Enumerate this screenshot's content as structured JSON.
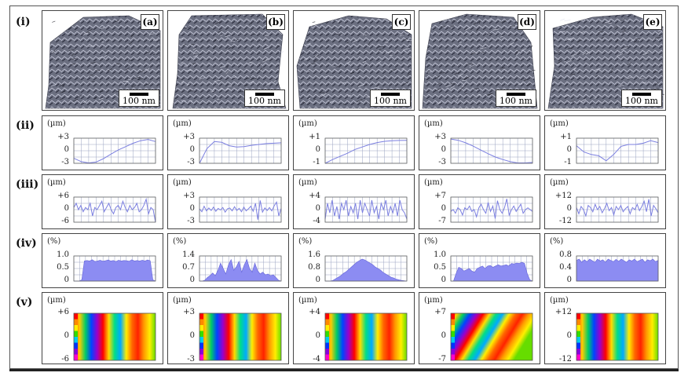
{
  "row_labels": [
    "(i)",
    "(ii)",
    "(iii)",
    "(iv)",
    "(v)"
  ],
  "panel_tags": [
    "(a)",
    "(b)",
    "(c)",
    "(d)",
    "(e)"
  ],
  "scale_bar_text": "100 nm",
  "unit_um": "(µm)",
  "unit_pct": "(%)",
  "surface_color": "#6b6f80",
  "plot_line_color": "#7b7fe0",
  "hist_fill_color": "#8c8cf2",
  "chart_data": [
    {
      "type": "line",
      "panel": "(a)",
      "row": "(ii)",
      "ylabel": "(µm)",
      "yticks": [
        "+3",
        "0",
        "-3"
      ],
      "ylim": [
        -3,
        3
      ],
      "values": [
        -1.8,
        -2.6,
        -2.9,
        -2.7,
        -1.9,
        -0.8,
        0.2,
        1.0,
        1.8,
        2.4,
        2.7,
        2.2
      ]
    },
    {
      "type": "line",
      "panel": "(b)",
      "row": "(ii)",
      "ylabel": "(µm)",
      "yticks": [
        "+3",
        "0",
        "-3"
      ],
      "ylim": [
        -3,
        3
      ],
      "values": [
        -3,
        0.5,
        2.2,
        2.0,
        1.2,
        0.9,
        1.0,
        1.3,
        1.5,
        1.7,
        1.8,
        1.9
      ]
    },
    {
      "type": "line",
      "panel": "(c)",
      "row": "(ii)",
      "ylabel": "(µm)",
      "yticks": [
        "+1",
        "0",
        "-1"
      ],
      "ylim": [
        -1,
        1
      ],
      "values": [
        -1,
        -0.7,
        -0.45,
        -0.2,
        0.1,
        0.3,
        0.5,
        0.65,
        0.75,
        0.8,
        0.82,
        0.83
      ]
    },
    {
      "type": "line",
      "panel": "(d)",
      "row": "(ii)",
      "ylabel": "(µm)",
      "yticks": [
        "+3",
        "0",
        "-3"
      ],
      "ylim": [
        -3,
        3
      ],
      "values": [
        2.8,
        2.5,
        1.9,
        1.1,
        0.2,
        -0.7,
        -1.5,
        -2.1,
        -2.6,
        -2.9,
        -2.9,
        -2.8
      ]
    },
    {
      "type": "line",
      "panel": "(e)",
      "row": "(ii)",
      "ylabel": "(µm)",
      "yticks": [
        "+1",
        "0",
        "-1"
      ],
      "ylim": [
        -1,
        1
      ],
      "values": [
        0.4,
        -0.1,
        -0.3,
        -0.4,
        -0.8,
        -0.3,
        0.35,
        0.5,
        0.5,
        0.6,
        0.8,
        0.65
      ]
    },
    {
      "type": "line",
      "panel": "(a)",
      "row": "(iii)",
      "ylabel": "(µm)",
      "yticks": [
        "+6",
        "0",
        "-6"
      ],
      "ylim": [
        -6,
        6
      ],
      "values": [
        1,
        3,
        0,
        2,
        -1,
        1,
        0,
        3,
        -3,
        1,
        0,
        2,
        4,
        -1,
        1,
        3,
        0,
        -2,
        1,
        2,
        0,
        4,
        1,
        -1,
        2,
        0,
        1,
        3,
        -1,
        0,
        2,
        5,
        -2,
        1,
        0,
        -6
      ]
    },
    {
      "type": "line",
      "panel": "(b)",
      "row": "(iii)",
      "ylabel": "(µm)",
      "yticks": [
        "+3",
        "0",
        "-3"
      ],
      "ylim": [
        -3,
        3
      ],
      "values": [
        0.2,
        -0.5,
        0.8,
        -0.3,
        0.4,
        -0.2,
        0.6,
        -0.4,
        0.3,
        -0.1,
        0.5,
        -0.6,
        0.2,
        0.4,
        -0.3,
        0.7,
        -0.2,
        0.3,
        -0.5,
        0.6,
        -0.3,
        0.2,
        0.8,
        -0.4,
        1.5,
        -2.4,
        2.2,
        -0.6,
        0.4,
        -0.2,
        0.5,
        -0.3,
        0.9,
        1.8,
        -1.5,
        0.3
      ]
    },
    {
      "type": "line",
      "panel": "(c)",
      "row": "(iii)",
      "ylabel": "(µm)",
      "yticks": [
        "+4",
        "0",
        "-4"
      ],
      "ylim": [
        -4,
        4
      ],
      "values": [
        -3,
        2,
        -1,
        3,
        -2,
        1,
        -3,
        2,
        0,
        3,
        -2,
        1,
        -1,
        2,
        -3,
        3,
        -1,
        2,
        0,
        -2,
        3,
        -1,
        1,
        -3,
        2,
        0,
        3,
        -2,
        1,
        -1,
        2,
        -2,
        3,
        0,
        -1,
        -3
      ]
    },
    {
      "type": "line",
      "panel": "(d)",
      "row": "(iii)",
      "ylabel": "(µm)",
      "yticks": [
        "+7",
        "0",
        "-7"
      ],
      "ylim": [
        -7,
        7
      ],
      "values": [
        -1,
        0,
        -2,
        1,
        0,
        -3,
        1,
        0,
        2,
        -1,
        0,
        -4,
        1,
        3,
        0,
        -2,
        4,
        -1,
        2,
        -5,
        5,
        0,
        -2,
        1,
        6,
        -3,
        0,
        2,
        -1,
        1,
        3,
        -2,
        0,
        1,
        0,
        -1
      ]
    },
    {
      "type": "line",
      "panel": "(e)",
      "row": "(iii)",
      "ylabel": "(µm)",
      "yticks": [
        "+12",
        "0",
        "-12"
      ],
      "ylim": [
        -12,
        12
      ],
      "values": [
        2,
        -4,
        3,
        0,
        -6,
        4,
        2,
        -2,
        5,
        0,
        3,
        -3,
        1,
        6,
        -1,
        2,
        -5,
        3,
        0,
        4,
        -2,
        1,
        3,
        -4,
        2,
        0,
        5,
        -1,
        3,
        8,
        -2,
        10,
        -6,
        4,
        1,
        -3
      ]
    },
    {
      "type": "area",
      "panel": "(a)",
      "row": "(iv)",
      "ylabel": "(%)",
      "yticks": [
        "1.0",
        "0.5",
        "0"
      ],
      "ylim": [
        0,
        1.0
      ],
      "values": [
        0,
        0,
        0,
        0.05,
        0.8,
        0.82,
        0.8,
        0.85,
        0.78,
        0.8,
        0.83,
        0.79,
        0.81,
        0.84,
        0.8,
        0.82,
        0.78,
        0.83,
        0.8,
        0.82,
        0.81,
        0.79,
        0.85,
        0.8,
        0.82,
        0.8,
        0.83,
        0.8,
        0.84,
        0.81,
        0.05,
        0
      ]
    },
    {
      "type": "area",
      "panel": "(b)",
      "row": "(iv)",
      "ylabel": "(%)",
      "yticks": [
        "1.4",
        "0.7",
        "0"
      ],
      "ylim": [
        0,
        1.4
      ],
      "values": [
        0,
        0,
        0.05,
        0.2,
        0.3,
        0.45,
        0.3,
        0.6,
        1.0,
        0.7,
        0.4,
        0.9,
        1.2,
        0.6,
        0.8,
        1.1,
        0.5,
        0.9,
        1.2,
        0.7,
        0.5,
        1.0,
        0.6,
        0.4,
        0.5,
        0.35,
        0.4,
        0.3,
        0.35,
        0.2,
        0.05,
        0
      ]
    },
    {
      "type": "area",
      "panel": "(c)",
      "row": "(iv)",
      "ylabel": "(%)",
      "yticks": [
        "1.6",
        "0.8",
        "0"
      ],
      "ylim": [
        0,
        1.6
      ],
      "values": [
        0,
        0,
        0,
        0.05,
        0.15,
        0.25,
        0.35,
        0.5,
        0.6,
        0.75,
        0.9,
        1.05,
        1.2,
        1.3,
        1.4,
        1.35,
        1.25,
        1.15,
        1.05,
        0.9,
        0.8,
        0.7,
        0.55,
        0.45,
        0.35,
        0.25,
        0.2,
        0.12,
        0.08,
        0.04,
        0.02,
        0
      ]
    },
    {
      "type": "area",
      "panel": "(d)",
      "row": "(iv)",
      "ylabel": "(%)",
      "yticks": [
        "1.0",
        "0.5",
        "0"
      ],
      "ylim": [
        0,
        1.0
      ],
      "values": [
        0,
        0,
        0.3,
        0.55,
        0.5,
        0.4,
        0.45,
        0.5,
        0.4,
        0.35,
        0.5,
        0.55,
        0.6,
        0.5,
        0.6,
        0.62,
        0.55,
        0.6,
        0.65,
        0.6,
        0.62,
        0.65,
        0.6,
        0.7,
        0.68,
        0.72,
        0.7,
        0.75,
        0.7,
        0.3,
        0.05,
        0
      ]
    },
    {
      "type": "area",
      "panel": "(e)",
      "row": "(iv)",
      "ylabel": "(%)",
      "yticks": [
        "0.8",
        "0.4",
        "0"
      ],
      "ylim": [
        0,
        0.8
      ],
      "values": [
        0.66,
        0.7,
        0.6,
        0.68,
        0.62,
        0.7,
        0.65,
        0.6,
        0.7,
        0.64,
        0.68,
        0.6,
        0.7,
        0.66,
        0.62,
        0.69,
        0.63,
        0.7,
        0.65,
        0.6,
        0.68,
        0.64,
        0.7,
        0.62,
        0.66,
        0.7,
        0.6,
        0.68,
        0.65,
        0.7,
        0.62,
        0.66
      ]
    },
    {
      "type": "heatmap",
      "panel": "(a)",
      "row": "(v)",
      "ylabel": "(µm)",
      "yticks": [
        "+6",
        "0",
        "-6"
      ],
      "ylim": [
        -6,
        6
      ]
    },
    {
      "type": "heatmap",
      "panel": "(b)",
      "row": "(v)",
      "ylabel": "(µm)",
      "yticks": [
        "+3",
        "0",
        "-3"
      ],
      "ylim": [
        -3,
        3
      ]
    },
    {
      "type": "heatmap",
      "panel": "(c)",
      "row": "(v)",
      "ylabel": "(µm)",
      "yticks": [
        "+4",
        "0",
        "-4"
      ],
      "ylim": [
        -4,
        4
      ]
    },
    {
      "type": "heatmap",
      "panel": "(d)",
      "row": "(v)",
      "ylabel": "(µm)",
      "yticks": [
        "+7",
        "0",
        "-7"
      ],
      "ylim": [
        -7,
        7
      ]
    },
    {
      "type": "heatmap",
      "panel": "(e)",
      "row": "(v)",
      "ylabel": "(µm)",
      "yticks": [
        "+12",
        "0",
        "-12"
      ],
      "ylim": [
        -12,
        12
      ]
    }
  ]
}
